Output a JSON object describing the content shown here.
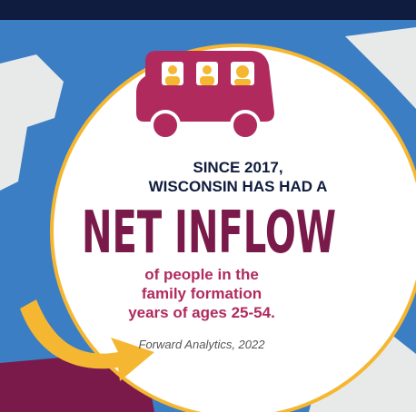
{
  "headline": [
    "SINCE 2017,",
    "WISCONSIN HAS HAD A"
  ],
  "highlight": "NET INFLOW",
  "detail": [
    "of people in the",
    "family formation",
    "years of ages 25-54."
  ],
  "source": "Forward Analytics, 2022"
}
